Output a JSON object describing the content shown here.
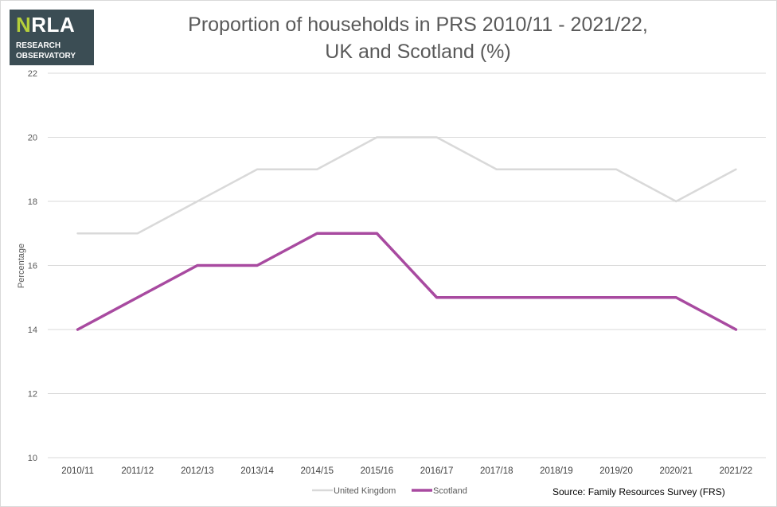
{
  "logo": {
    "mark_n": "N",
    "mark_rest": "RLA",
    "line1": "RESEARCH",
    "line2": "OBSERVATORY"
  },
  "title_line1": "Proportion of households in PRS 2010/11 - 2021/22,",
  "title_line2": "UK and Scotland (%)",
  "source": "Source: Family Resources Survey (FRS)",
  "chart_data": {
    "type": "line",
    "title": "Proportion of households in PRS 2010/11 - 2021/22, UK and Scotland (%)",
    "xlabel": "",
    "ylabel": "Percentage",
    "ylim": [
      10,
      22
    ],
    "yticks": [
      10,
      12,
      14,
      16,
      18,
      20,
      22
    ],
    "grid": true,
    "legend_position": "bottom",
    "categories": [
      "2010/11",
      "2011/12",
      "2012/13",
      "2013/14",
      "2014/15",
      "2015/16",
      "2016/17",
      "2017/18",
      "2018/19",
      "2019/20",
      "2020/21",
      "2021/22"
    ],
    "series": [
      {
        "name": "United Kingdom",
        "color": "#d9d9d9",
        "values": [
          17,
          17,
          18,
          19,
          19,
          20,
          20,
          19,
          19,
          19,
          18,
          19
        ]
      },
      {
        "name": "Scotland",
        "color": "#a84aa0",
        "values": [
          14,
          15,
          16,
          16,
          17,
          17,
          15,
          15,
          15,
          15,
          15,
          14
        ]
      }
    ]
  }
}
